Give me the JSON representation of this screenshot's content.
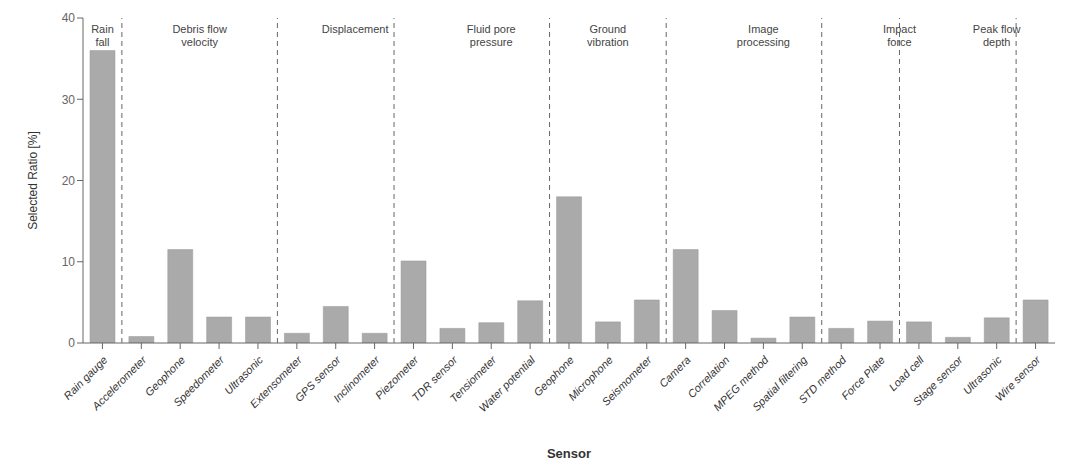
{
  "chart_data": {
    "type": "bar",
    "xlabel": "Sensor",
    "ylabel": "Selected Ratio [%]",
    "categories": [
      "Rain gauge",
      "Accelerometer",
      "Geophone",
      "Speedometer",
      "Ultrasonic",
      "Extensometer",
      "GPS sensor",
      "Inclinometer",
      "Piezometer",
      "TDR sensor",
      "Tensiometer",
      "Water potential",
      "Geophone",
      "Microphone",
      "Seismometer",
      "Camera",
      "Correlation",
      "MPEG method",
      "Spatial filtering",
      "STD method",
      "Force Plate",
      "Load cell",
      "Stage sensor",
      "Ultrasonic",
      "Wire sensor"
    ],
    "values": [
      36.0,
      0.8,
      11.5,
      3.2,
      3.2,
      1.2,
      4.5,
      1.2,
      10.1,
      1.8,
      2.5,
      5.2,
      18.0,
      2.6,
      5.3,
      11.5,
      4.0,
      0.6,
      3.2,
      1.8,
      2.7,
      2.6,
      0.7,
      3.1,
      5.3
    ],
    "color": "#aaaaaa",
    "ylim": [
      0,
      40
    ],
    "yticks": [
      0,
      10,
      20,
      30,
      40
    ],
    "grid": false,
    "separators": [
      0.5,
      4.5,
      7.5,
      11.5,
      14.5,
      18.5,
      20.5,
      23.5
    ],
    "annotations": [
      {
        "text": "Rain\nfall",
        "x": 0.0,
        "y": 39.5
      },
      {
        "text": "Debris flow\nvelocity",
        "x": 2.5,
        "y": 39.5
      },
      {
        "text": "Displacement",
        "x": 6.5,
        "y": 39.5
      },
      {
        "text": "Fluid pore\npressure",
        "x": 10.0,
        "y": 39.5
      },
      {
        "text": "Ground\nvibration",
        "x": 13.0,
        "y": 39.5
      },
      {
        "text": "Image\nprocessing",
        "x": 17.0,
        "y": 39.5
      },
      {
        "text": "Impact\nforce",
        "x": 20.5,
        "y": 39.5
      },
      {
        "text": "Peak flow\ndepth",
        "x": 23.0,
        "y": 39.5
      }
    ]
  }
}
